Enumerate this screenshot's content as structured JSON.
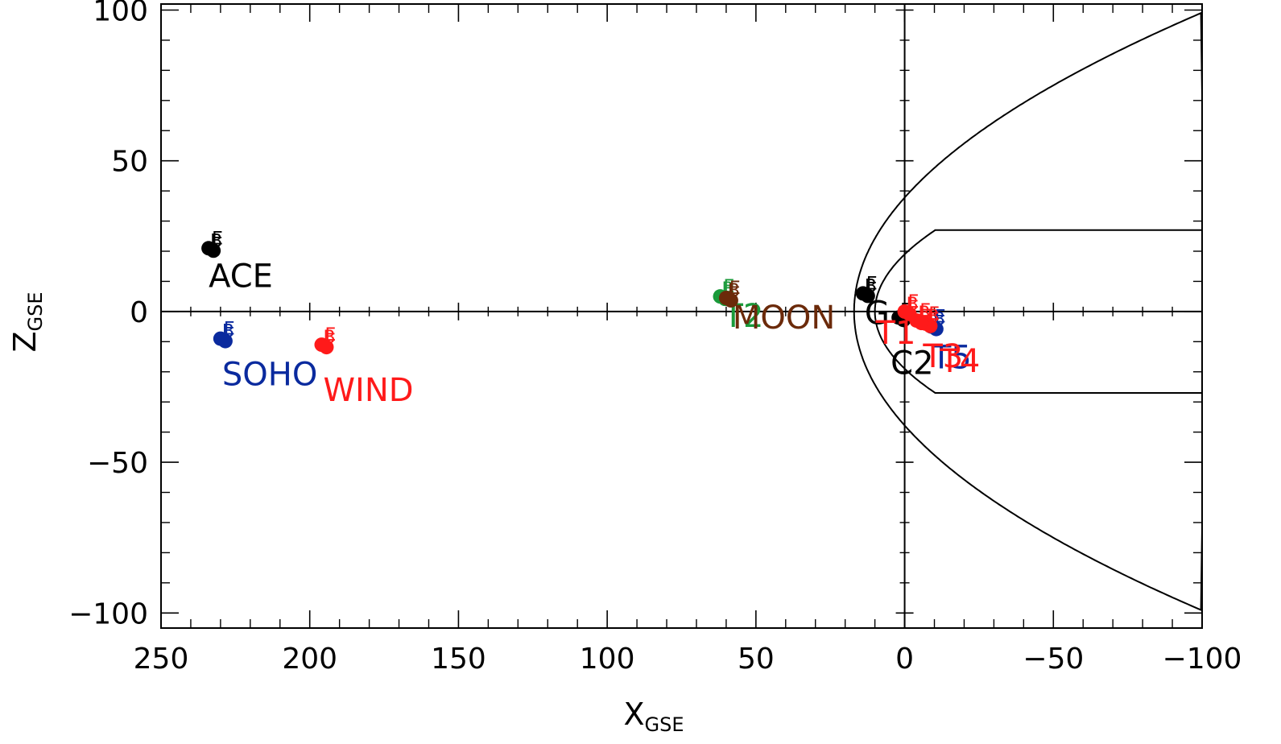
{
  "chart_data": {
    "type": "scatter",
    "xlabel": "X",
    "xlabel_sub": "GSE",
    "ylabel": "Z",
    "ylabel_sub": "GSE",
    "xlim": [
      250,
      -100
    ],
    "ylim": [
      -105,
      102
    ],
    "x_ticks": [
      250,
      200,
      150,
      100,
      50,
      0,
      -50,
      -100
    ],
    "x_tick_labels": [
      "250",
      "200",
      "150",
      "100",
      "50",
      "0",
      "−50",
      "−100"
    ],
    "y_ticks": [
      100,
      50,
      0,
      -50,
      -100
    ],
    "y_tick_labels": [
      "100",
      "50",
      "0",
      "−50",
      "−100"
    ],
    "colors": {
      "black": "#000000",
      "red": "#ff1a1a",
      "blue": "#0a2a9e",
      "green": "#1a9a3a",
      "brown": "#6b2a0a"
    },
    "spacecraft": [
      {
        "label": "ACE",
        "color": "black",
        "x": 234,
        "y": 21,
        "marks": [
          "B",
          "E"
        ]
      },
      {
        "label": "SOHO",
        "color": "blue",
        "x": 230,
        "y": -9,
        "marks": [
          "B",
          "E"
        ]
      },
      {
        "label": "WIND",
        "color": "red",
        "x": 196,
        "y": -11,
        "marks": [
          "B",
          "E"
        ]
      },
      {
        "label": "T2",
        "color": "green",
        "x": 62,
        "y": 5,
        "marks": [
          "B",
          "E"
        ]
      },
      {
        "label": "MOON",
        "color": "brown",
        "x": 60,
        "y": 4.5,
        "marks": [
          "B",
          "E"
        ]
      },
      {
        "label": "G",
        "color": "black",
        "x": 14,
        "y": 6,
        "marks": [
          "B",
          "E"
        ]
      },
      {
        "label": "C2",
        "color": "black",
        "x": 2,
        "y": -2,
        "marks": [
          "B"
        ]
      },
      {
        "label": "T5",
        "color": "blue",
        "x": -9,
        "y": -5,
        "marks": [
          "B",
          "E"
        ]
      },
      {
        "label": "T4",
        "color": "red",
        "x": -7,
        "y": -4,
        "marks": [
          "B",
          "E"
        ]
      },
      {
        "label": "T3",
        "color": "red",
        "x": -4,
        "y": -3,
        "marks": [
          "B",
          "E"
        ]
      },
      {
        "label": "T1",
        "color": "red",
        "x": 0,
        "y": 0,
        "marks": [
          "B",
          "E"
        ]
      }
    ],
    "boundaries": [
      {
        "name": "bow shock",
        "x0": 17,
        "a": 0.0119,
        "ymax": 72
      },
      {
        "name": "magnetopause",
        "x0": 10,
        "a": 0.0278,
        "ymax": 27
      }
    ]
  }
}
